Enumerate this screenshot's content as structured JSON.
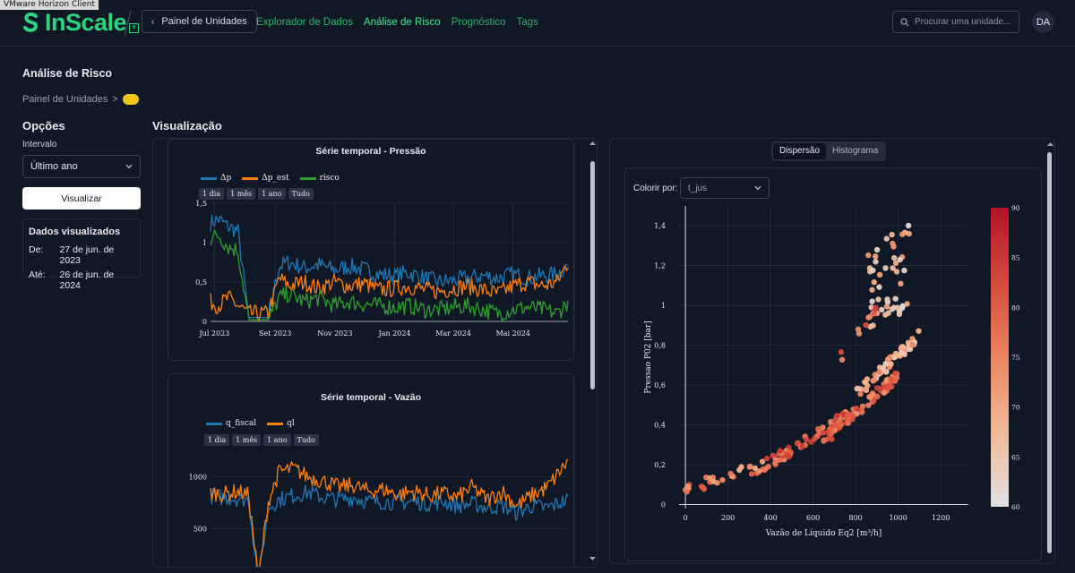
{
  "window": {
    "title": "VMware Horizon Client"
  },
  "header": {
    "logo_text": "InScale",
    "logo_badge": "a",
    "back_label": "Painel de Unidades",
    "nav": [
      {
        "label": "Explorador de Dados",
        "active": false
      },
      {
        "label": "Análise de Risco",
        "active": true
      },
      {
        "label": "Prognóstico",
        "active": false
      },
      {
        "label": "Tags",
        "active": false
      }
    ],
    "search_placeholder": "Procurar uma unidade...",
    "avatar": "DA"
  },
  "page": {
    "title": "Análise de Risco",
    "breadcrumb": "Painel de Unidades",
    "breadcrumb_sep": ">"
  },
  "options": {
    "title": "Opções",
    "interval_label": "Intervalo",
    "interval_value": "Último ano",
    "visualize_label": "Visualizar",
    "range_title": "Dados visualizados",
    "from_label": "De:",
    "from_value": "27 de jun. de 2023",
    "to_label": "Até:",
    "to_value": "26 de jun. de 2024"
  },
  "viz": {
    "title": "Visualização",
    "tabs": [
      "Dispersão",
      "Histograma"
    ],
    "active_tab": "Dispersão",
    "color_by_label": "Colorir por:",
    "color_by_value": "t_jus"
  },
  "colors": {
    "accent": "#2bd47f",
    "nav": "#2fb36e",
    "bg": "#101826",
    "blue": "#1f77b4",
    "orange": "#ff7f0e",
    "green": "#2ca02c"
  },
  "chart_data": [
    {
      "type": "line",
      "title": "Série temporal - Pressão",
      "range_buttons": [
        "1 dia",
        "1 mês",
        "1 ano",
        "Tudo"
      ],
      "x_ticks": [
        "Jul 2023",
        "Set 2023",
        "Nov 2023",
        "Jan 2024",
        "Mar 2024",
        "Mai 2024"
      ],
      "y_ticks": [
        "0",
        "0,5",
        "1",
        "1,5"
      ],
      "ylim": [
        0,
        1.5
      ],
      "x": [
        "2023-06-27",
        "2023-07-05",
        "2023-07-15",
        "2023-07-25",
        "2023-08-05",
        "2023-08-15",
        "2023-08-25",
        "2023-09-05",
        "2023-09-15",
        "2023-10-01",
        "2023-10-15",
        "2023-11-01",
        "2023-11-15",
        "2023-12-01",
        "2023-12-15",
        "2024-01-01",
        "2024-01-15",
        "2024-02-01",
        "2024-02-15",
        "2024-03-01",
        "2024-03-15",
        "2024-04-01",
        "2024-04-15",
        "2024-05-01",
        "2024-05-15",
        "2024-06-01",
        "2024-06-15",
        "2024-06-26"
      ],
      "series": [
        {
          "name": "Δp",
          "values": [
            1.25,
            1.3,
            1.2,
            1.15,
            0.05,
            0.05,
            0.05,
            0.7,
            0.75,
            0.68,
            0.72,
            0.65,
            0.7,
            0.66,
            0.6,
            0.58,
            0.62,
            0.55,
            0.5,
            0.52,
            0.55,
            0.58,
            0.55,
            0.6,
            0.55,
            0.58,
            0.6,
            0.72
          ]
        },
        {
          "name": "Δp_est",
          "values": [
            0.25,
            0.2,
            0.3,
            0.2,
            0.1,
            0.1,
            0.1,
            0.55,
            0.45,
            0.5,
            0.42,
            0.5,
            0.45,
            0.48,
            0.4,
            0.42,
            0.45,
            0.4,
            0.38,
            0.42,
            0.45,
            0.4,
            0.35,
            0.45,
            0.5,
            0.45,
            0.5,
            0.75
          ]
        },
        {
          "name": "risco",
          "values": [
            1.05,
            1.1,
            0.95,
            0.9,
            0.02,
            0.02,
            0.02,
            0.3,
            0.35,
            0.25,
            0.3,
            0.2,
            0.25,
            0.22,
            0.2,
            0.18,
            0.2,
            0.15,
            0.15,
            0.18,
            0.2,
            0.15,
            0.1,
            0.15,
            0.18,
            0.15,
            0.1,
            0.25
          ]
        }
      ]
    },
    {
      "type": "line",
      "title": "Série temporal - Vazão",
      "range_buttons": [
        "1 dia",
        "1 mês",
        "1 ano",
        "Tudo"
      ],
      "y_ticks": [
        "500",
        "1000"
      ],
      "ylim": [
        0,
        1300
      ],
      "x": [
        "2023-06-27",
        "2023-07-10",
        "2023-07-25",
        "2023-08-05",
        "2023-08-15",
        "2023-08-25",
        "2023-09-05",
        "2023-09-20",
        "2023-10-05",
        "2023-10-20",
        "2023-11-05",
        "2023-11-20",
        "2023-12-05",
        "2023-12-20",
        "2024-01-05",
        "2024-01-20",
        "2024-02-05",
        "2024-02-20",
        "2024-03-05",
        "2024-03-20",
        "2024-04-05",
        "2024-04-20",
        "2024-05-05",
        "2024-05-20",
        "2024-06-05",
        "2024-06-26"
      ],
      "series": [
        {
          "name": "q_fiscal",
          "values": [
            820,
            800,
            790,
            780,
            0,
            700,
            780,
            820,
            850,
            800,
            780,
            800,
            760,
            760,
            750,
            760,
            740,
            760,
            720,
            740,
            700,
            720,
            650,
            720,
            700,
            780
          ]
        },
        {
          "name": "ql",
          "values": [
            850,
            830,
            860,
            820,
            0,
            760,
            1050,
            1080,
            1000,
            960,
            900,
            920,
            860,
            880,
            830,
            860,
            820,
            840,
            800,
            900,
            780,
            860,
            720,
            820,
            900,
            1150
          ]
        }
      ]
    },
    {
      "type": "scatter",
      "xlabel": "Vazão de Líquido Eq2 [m³/h]",
      "ylabel": "Pressao P02 [bar]",
      "x_ticks": [
        "0",
        "200",
        "400",
        "600",
        "800",
        "1000",
        "1200"
      ],
      "y_ticks": [
        "0",
        "0,2",
        "0,4",
        "0,6",
        "0,8",
        "1",
        "1,2",
        "1,4"
      ],
      "xlim": [
        -30,
        1330
      ],
      "ylim": [
        -0.02,
        1.5
      ],
      "colorbar": {
        "label": "t_jus",
        "min": 60,
        "max": 90,
        "ticks": [
          "60",
          "65",
          "70",
          "75",
          "80",
          "85",
          "90"
        ]
      },
      "clusters": [
        {
          "x_range": [
            0,
            380
          ],
          "y_range": [
            0.08,
            0.2
          ],
          "c": 75,
          "n": 30
        },
        {
          "x_range": [
            380,
            760
          ],
          "y_range": [
            0.2,
            0.45
          ],
          "c": 80,
          "n": 60
        },
        {
          "x_range": [
            650,
            1000
          ],
          "y_range": [
            0.32,
            0.65
          ],
          "c": 78,
          "n": 80
        },
        {
          "x_range": [
            800,
            1100
          ],
          "y_range": [
            0.55,
            0.85
          ],
          "c": 70,
          "n": 60
        },
        {
          "x_range": [
            850,
            1060
          ],
          "y_range": [
            1.1,
            1.42
          ],
          "c": 67,
          "n": 50
        },
        {
          "x_range": [
            700,
            900
          ],
          "y_range": [
            0.7,
            1.0
          ],
          "c": 78,
          "n": 10
        }
      ]
    }
  ]
}
